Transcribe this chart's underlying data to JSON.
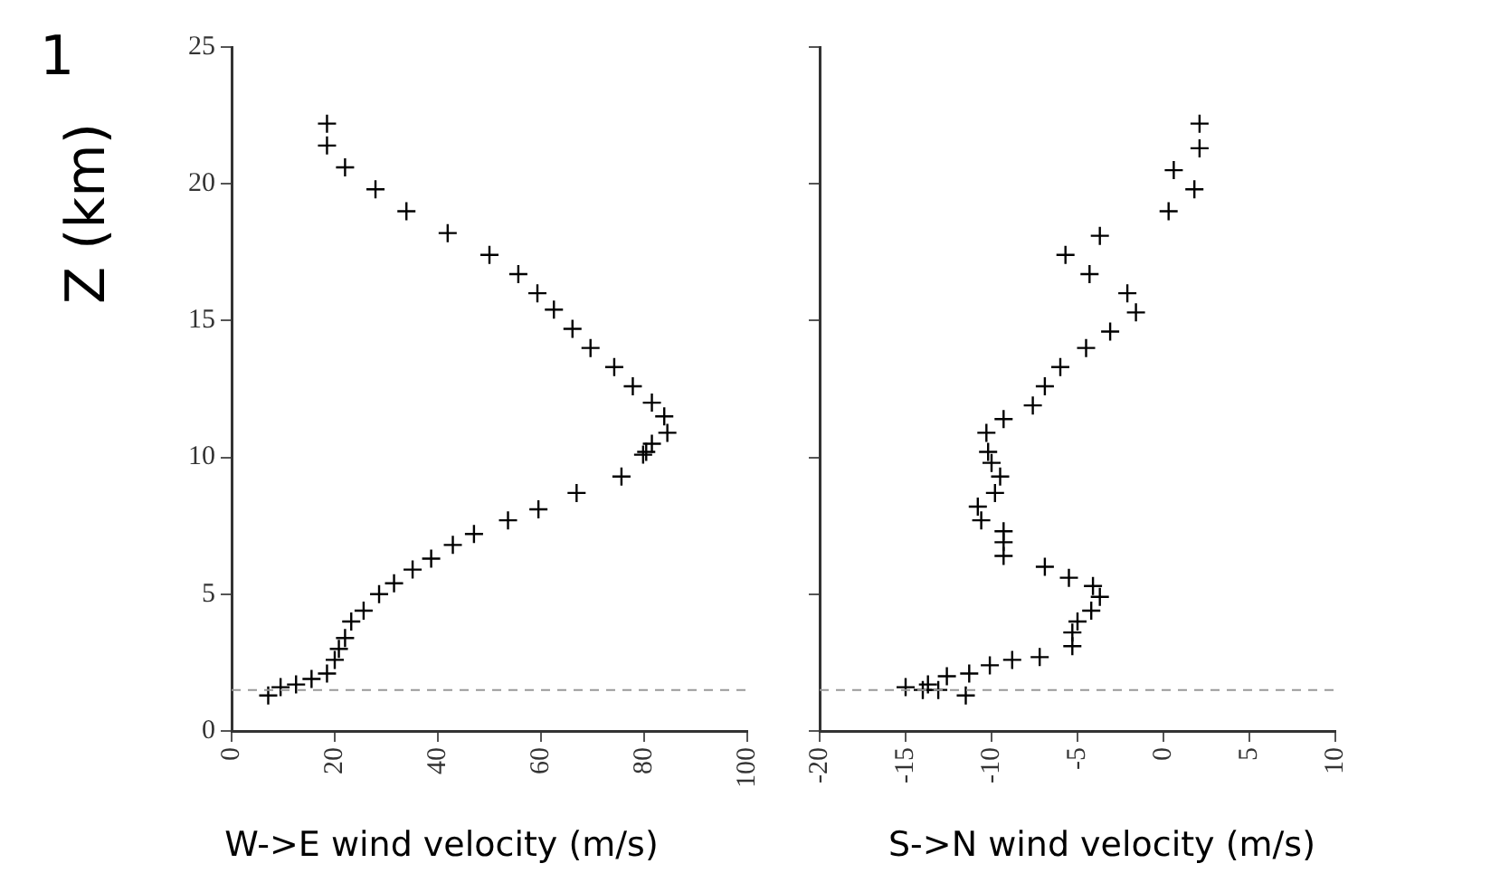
{
  "chart_data": [
    {
      "type": "scatter",
      "annotations": [
        "1"
      ],
      "ylabel": "Z (km)",
      "xlabel": "W->E wind velocity (m/s)",
      "marker": "cross",
      "grid": false,
      "xlim": [
        0,
        100
      ],
      "xticks": [
        0,
        20,
        40,
        60,
        80,
        100
      ],
      "ylim": [
        0,
        25
      ],
      "yticks": [
        0,
        5,
        10,
        15,
        20,
        25
      ],
      "ref_lines": [
        {
          "axis": "y",
          "value": 1.5,
          "line_style": "dashed",
          "color": "#999999"
        }
      ],
      "series": [
        {
          "color": "#000000",
          "x": [
            18.5,
            18.5,
            22.0,
            27.9,
            33.9,
            41.9,
            50.0,
            55.6,
            59.3,
            62.5,
            66.1,
            69.6,
            74.2,
            77.8,
            81.5,
            83.9,
            84.5,
            81.5,
            80.4,
            79.8,
            75.6,
            66.9,
            59.5,
            53.6,
            47.0,
            42.9,
            38.7,
            35.1,
            31.5,
            28.6,
            25.6,
            23.2,
            22.0,
            20.8,
            20.0,
            18.5,
            15.5,
            12.5,
            9.5,
            7.1
          ],
          "values": [
            22.2,
            21.4,
            20.6,
            19.8,
            19.0,
            18.2,
            17.4,
            16.7,
            16.0,
            15.4,
            14.7,
            14.0,
            13.3,
            12.6,
            12.0,
            11.5,
            10.9,
            10.5,
            10.2,
            10.1,
            9.3,
            8.7,
            8.1,
            7.7,
            7.2,
            6.8,
            6.3,
            5.9,
            5.4,
            5.0,
            4.4,
            4.0,
            3.4,
            3.0,
            2.6,
            2.1,
            1.9,
            1.7,
            1.6,
            1.3
          ]
        }
      ]
    },
    {
      "type": "scatter",
      "xlabel": "S->N wind velocity (m/s)",
      "marker": "cross",
      "grid": false,
      "tick_labels": "x",
      "xlim": [
        -20,
        10
      ],
      "xticks": [
        -20,
        -15,
        -10,
        -5,
        0,
        5,
        10
      ],
      "ylim": [
        0,
        25
      ],
      "yticks": [
        0,
        5,
        10,
        15,
        20,
        25
      ],
      "ref_lines": [
        {
          "axis": "y",
          "value": 1.5,
          "line_style": "dashed",
          "color": "#999999"
        }
      ],
      "series": [
        {
          "color": "#000000",
          "x": [
            2.1,
            2.1,
            0.6,
            1.8,
            0.3,
            -3.7,
            -5.7,
            -4.3,
            -2.1,
            -1.6,
            -3.1,
            -4.5,
            -6.0,
            -6.9,
            -7.6,
            -9.3,
            -10.3,
            -10.2,
            -10.0,
            -9.5,
            -9.8,
            -10.8,
            -10.6,
            -9.3,
            -9.3,
            -9.3,
            -6.9,
            -5.5,
            -4.1,
            -3.7,
            -4.2,
            -5.0,
            -5.3,
            -5.3,
            -7.2,
            -8.8,
            -10.1,
            -11.3,
            -12.6,
            -13.7,
            -15.0,
            -14.0,
            -13.1,
            -11.5
          ],
          "values": [
            22.2,
            21.3,
            20.5,
            19.8,
            19.0,
            18.1,
            17.4,
            16.7,
            16.0,
            15.3,
            14.6,
            14.0,
            13.3,
            12.6,
            11.9,
            11.4,
            10.9,
            10.2,
            9.8,
            9.3,
            8.7,
            8.2,
            7.7,
            7.3,
            6.9,
            6.4,
            6.0,
            5.6,
            5.3,
            4.9,
            4.4,
            4.0,
            3.6,
            3.1,
            2.7,
            2.6,
            2.4,
            2.1,
            2.0,
            1.7,
            1.6,
            1.5,
            1.5,
            1.3
          ]
        }
      ]
    }
  ]
}
